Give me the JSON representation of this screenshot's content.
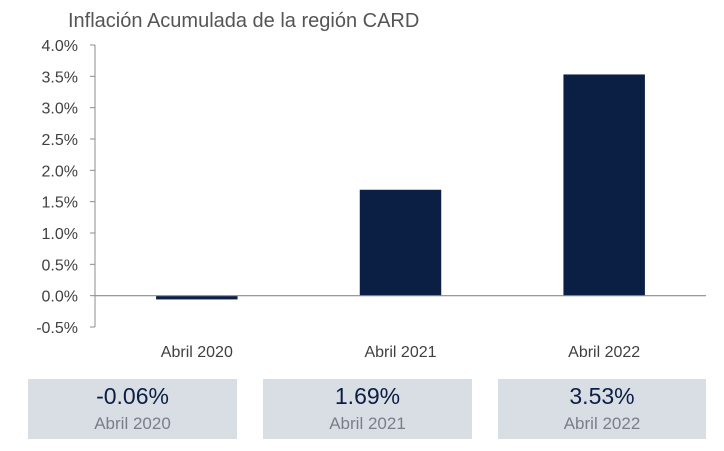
{
  "chart_data": {
    "type": "bar",
    "title": "Inflación Acumulada de la región CARD",
    "categories": [
      "Abril 2020",
      "Abril 2021",
      "Abril 2022"
    ],
    "values": [
      -0.06,
      1.69,
      3.53
    ],
    "ylim": [
      -0.5,
      4.0
    ],
    "yticks": [
      "4.0%",
      "3.5%",
      "3.0%",
      "2.5%",
      "2.0%",
      "1.5%",
      "1.0%",
      "0.5%",
      "0.0%",
      "-0.5%"
    ],
    "ytick_values": [
      4.0,
      3.5,
      3.0,
      2.5,
      2.0,
      1.5,
      1.0,
      0.5,
      0.0,
      -0.5
    ],
    "grid": false,
    "bar_color": "#0b1f44"
  },
  "summary": [
    {
      "value": "-0.06%",
      "label": "Abril 2020"
    },
    {
      "value": "1.69%",
      "label": "Abril 2021"
    },
    {
      "value": "3.53%",
      "label": "Abril 2022"
    }
  ]
}
